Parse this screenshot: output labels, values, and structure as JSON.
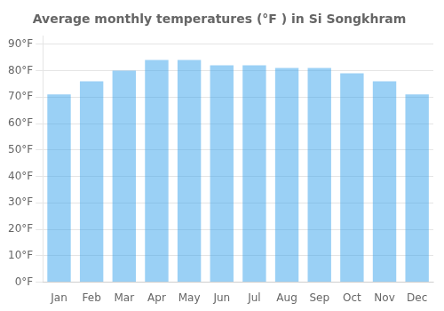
{
  "chart_data": {
    "type": "bar",
    "title": "Average monthly temperatures (°F ) in Si Songkhram",
    "categories": [
      "Jan",
      "Feb",
      "Mar",
      "Apr",
      "May",
      "Jun",
      "Jul",
      "Aug",
      "Sep",
      "Oct",
      "Nov",
      "Dec"
    ],
    "values": [
      71,
      76,
      80,
      84,
      84,
      82,
      82,
      81,
      81,
      79,
      76,
      71
    ],
    "ylim": [
      0,
      93
    ],
    "yticks": [
      {
        "value": 0,
        "label": "0°F"
      },
      {
        "value": 10,
        "label": "10°F"
      },
      {
        "value": 20,
        "label": "20°F"
      },
      {
        "value": 30,
        "label": "30°F"
      },
      {
        "value": 40,
        "label": "40°F"
      },
      {
        "value": 50,
        "label": "50°F"
      },
      {
        "value": 60,
        "label": "60°F"
      },
      {
        "value": 70,
        "label": "70°F"
      },
      {
        "value": 80,
        "label": "80°F"
      },
      {
        "value": 90,
        "label": "90°F"
      }
    ],
    "grid": true
  }
}
